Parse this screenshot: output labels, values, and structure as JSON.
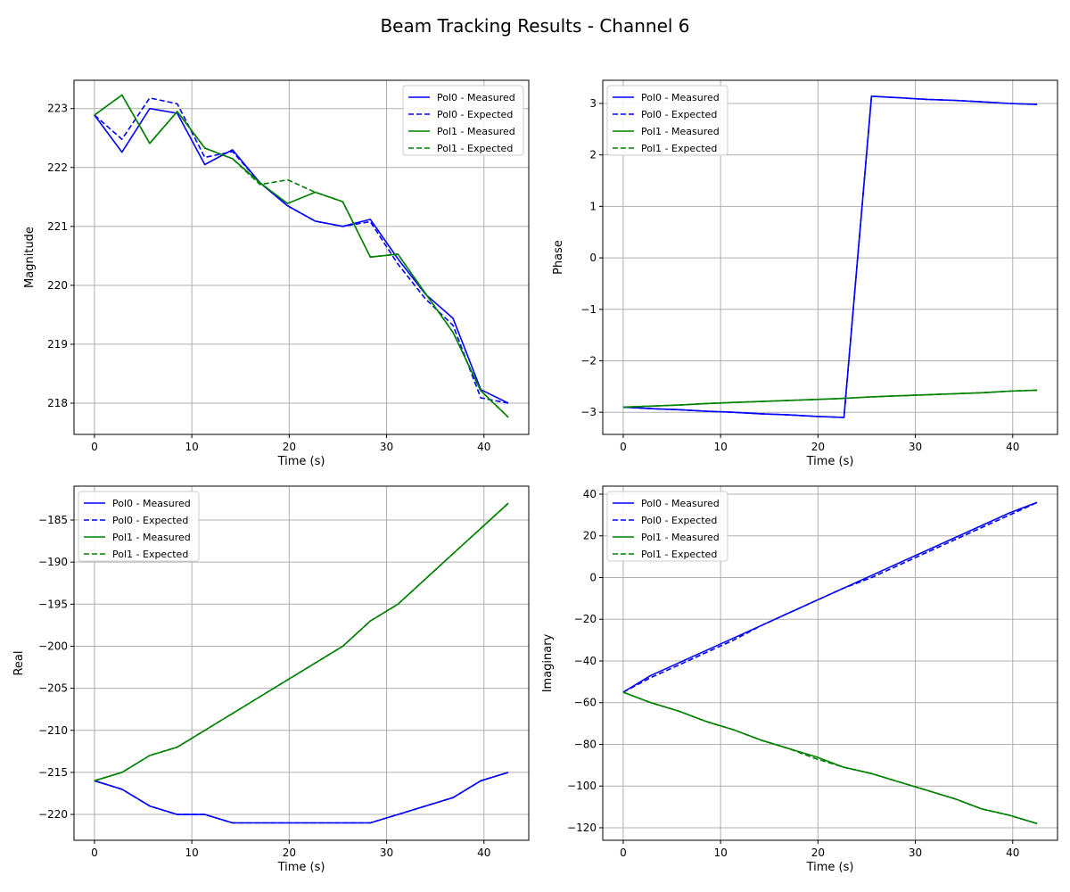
{
  "figure": {
    "title": "Beam Tracking Results - Channel 6"
  },
  "colors": {
    "pol0": "#0000ff",
    "pol1": "#008000",
    "grid": "#b0b0b0"
  },
  "chart_data": [
    {
      "type": "line",
      "xlabel": "Time (s)",
      "ylabel": "Magnitude",
      "xlim": [
        -2.1,
        44.6
      ],
      "ylim": [
        217.47,
        223.48
      ],
      "xticks": [
        0,
        10,
        20,
        30,
        40
      ],
      "yticks": [
        218,
        219,
        220,
        221,
        222,
        223
      ],
      "grid": true,
      "legend": "top-right",
      "x": [
        0,
        2.83,
        5.67,
        8.5,
        11.33,
        14.17,
        17,
        19.83,
        22.67,
        25.5,
        28.33,
        31.17,
        34,
        36.83,
        39.67,
        42.5
      ],
      "series": [
        {
          "name": "Pol0 - Measured",
          "color": "pol0",
          "dash": false,
          "values": [
            222.89,
            222.26,
            223.0,
            222.92,
            222.05,
            222.3,
            221.74,
            221.35,
            221.09,
            221.0,
            221.12,
            220.45,
            219.85,
            219.44,
            218.23,
            218.0
          ]
        },
        {
          "name": "Pol0 - Expected",
          "color": "pol0",
          "dash": true,
          "values": [
            222.89,
            222.48,
            223.18,
            223.08,
            222.17,
            222.27,
            221.74,
            221.35,
            221.09,
            221.0,
            221.08,
            220.36,
            219.77,
            219.32,
            218.09,
            218.0
          ]
        },
        {
          "name": "Pol1 - Measured",
          "color": "pol1",
          "dash": false,
          "values": [
            222.89,
            223.23,
            222.41,
            222.95,
            222.33,
            222.15,
            221.74,
            221.39,
            221.58,
            221.42,
            220.48,
            220.53,
            219.86,
            219.2,
            218.21,
            217.76
          ]
        },
        {
          "name": "Pol1 - Expected",
          "color": "pol1",
          "dash": true,
          "values": [
            222.89,
            223.23,
            222.41,
            222.95,
            222.33,
            222.15,
            221.71,
            221.79,
            221.58,
            221.42,
            220.48,
            220.53,
            219.86,
            219.2,
            218.21,
            217.76
          ]
        }
      ]
    },
    {
      "type": "line",
      "xlabel": "Time (s)",
      "ylabel": "Phase",
      "xlim": [
        -2.1,
        44.6
      ],
      "ylim": [
        -3.43,
        3.45
      ],
      "xticks": [
        0,
        10,
        20,
        30,
        40
      ],
      "yticks": [
        -3,
        -2,
        -1,
        0,
        1,
        2,
        3
      ],
      "grid": true,
      "legend": "top-left",
      "x": [
        0,
        2.83,
        5.67,
        8.5,
        11.33,
        14.17,
        17,
        19.83,
        22.67,
        25.5,
        28.33,
        31.17,
        34,
        36.83,
        39.67,
        42.5
      ],
      "series": [
        {
          "name": "Pol0 - Measured",
          "color": "pol0",
          "dash": false,
          "values": [
            -2.9,
            -2.93,
            -2.95,
            -2.98,
            -3.0,
            -3.03,
            -3.05,
            -3.08,
            -3.1,
            3.14,
            3.11,
            3.08,
            3.06,
            3.03,
            3.0,
            2.98
          ]
        },
        {
          "name": "Pol0 - Expected",
          "color": "pol0",
          "dash": true,
          "values": [
            -2.9,
            -2.93,
            -2.95,
            -2.98,
            -3.0,
            -3.03,
            -3.05,
            -3.08,
            -3.1,
            3.14,
            3.11,
            3.08,
            3.06,
            3.03,
            3.0,
            2.98
          ]
        },
        {
          "name": "Pol1 - Measured",
          "color": "pol1",
          "dash": false,
          "values": [
            -2.9,
            -2.88,
            -2.86,
            -2.83,
            -2.81,
            -2.79,
            -2.77,
            -2.75,
            -2.73,
            -2.7,
            -2.68,
            -2.66,
            -2.64,
            -2.62,
            -2.59,
            -2.57
          ]
        },
        {
          "name": "Pol1 - Expected",
          "color": "pol1",
          "dash": true,
          "values": [
            -2.9,
            -2.88,
            -2.86,
            -2.83,
            -2.81,
            -2.79,
            -2.77,
            -2.75,
            -2.73,
            -2.7,
            -2.68,
            -2.66,
            -2.64,
            -2.62,
            -2.59,
            -2.57
          ]
        }
      ]
    },
    {
      "type": "line",
      "xlabel": "Time (s)",
      "ylabel": "Real",
      "xlim": [
        -2.1,
        44.6
      ],
      "ylim": [
        -223.07,
        -180.97
      ],
      "xticks": [
        0,
        10,
        20,
        30,
        40
      ],
      "yticks": [
        -220,
        -215,
        -210,
        -205,
        -200,
        -195,
        -190,
        -185
      ],
      "grid": true,
      "legend": "top-left",
      "x": [
        0,
        2.83,
        5.67,
        8.5,
        11.33,
        14.17,
        17,
        19.83,
        22.67,
        25.5,
        28.33,
        31.17,
        34,
        36.83,
        39.67,
        42.5
      ],
      "series": [
        {
          "name": "Pol0 - Measured",
          "color": "pol0",
          "dash": false,
          "values": [
            -216,
            -217,
            -219,
            -220,
            -220,
            -221,
            -221,
            -221,
            -221,
            -221,
            -221,
            -220,
            -219,
            -218,
            -216,
            -215
          ]
        },
        {
          "name": "Pol0 - Expected",
          "color": "pol0",
          "dash": true,
          "values": [
            -216,
            -217,
            -219,
            -220,
            -220,
            -221,
            -221,
            -221,
            -221,
            -221,
            -221,
            -220,
            -219,
            -218,
            -216,
            -215
          ]
        },
        {
          "name": "Pol1 - Measured",
          "color": "pol1",
          "dash": false,
          "values": [
            -216,
            -215,
            -213,
            -212,
            -210,
            -208,
            -206,
            -204,
            -202,
            -200,
            -197,
            -195,
            -192,
            -189,
            -186,
            -183
          ]
        },
        {
          "name": "Pol1 - Expected",
          "color": "pol1",
          "dash": true,
          "values": [
            -216,
            -215,
            -213,
            -212,
            -210,
            -208,
            -206,
            -204,
            -202,
            -200,
            -197,
            -195,
            -192,
            -189,
            -186,
            -183
          ]
        }
      ]
    },
    {
      "type": "line",
      "xlabel": "Time (s)",
      "ylabel": "Imaginary",
      "xlim": [
        -2.1,
        44.6
      ],
      "ylim": [
        -126.0,
        43.85
      ],
      "xticks": [
        0,
        10,
        20,
        30,
        40
      ],
      "yticks": [
        -120,
        -100,
        -80,
        -60,
        -40,
        -20,
        0,
        20,
        40
      ],
      "grid": true,
      "legend": "top-left",
      "x": [
        0,
        2.83,
        5.67,
        8.5,
        11.33,
        14.17,
        17,
        19.83,
        22.67,
        25.5,
        28.33,
        31.17,
        34,
        36.83,
        39.67,
        42.5
      ],
      "series": [
        {
          "name": "Pol0 - Measured",
          "color": "pol0",
          "dash": false,
          "values": [
            -55,
            -47,
            -41,
            -35,
            -29,
            -23,
            -17,
            -11,
            -5,
            1,
            7,
            13,
            19,
            25,
            31,
            36
          ]
        },
        {
          "name": "Pol0 - Expected",
          "color": "pol0",
          "dash": true,
          "values": [
            -55,
            -48,
            -42,
            -36,
            -30,
            -23,
            -17,
            -11,
            -5,
            0,
            6,
            12,
            18,
            24,
            30,
            36
          ]
        },
        {
          "name": "Pol1 - Measured",
          "color": "pol1",
          "dash": false,
          "values": [
            -55,
            -60,
            -64,
            -69,
            -73,
            -78,
            -82,
            -86,
            -91,
            -94,
            -98,
            -102,
            -106,
            -111,
            -114,
            -118
          ]
        },
        {
          "name": "Pol1 - Expected",
          "color": "pol1",
          "dash": true,
          "values": [
            -55,
            -60,
            -64,
            -69,
            -73,
            -78,
            -82,
            -87,
            -91,
            -94,
            -98,
            -102,
            -106,
            -111,
            -114,
            -118
          ]
        }
      ]
    }
  ]
}
